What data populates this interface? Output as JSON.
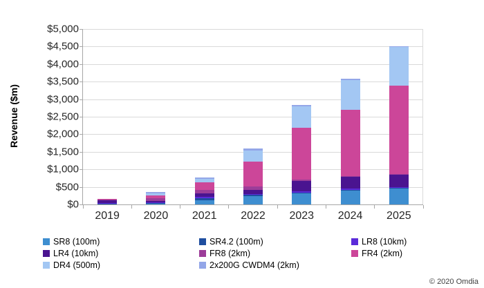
{
  "chart_data": {
    "type": "bar",
    "stacked": true,
    "title": "",
    "ylabel": "Revenue ($m)",
    "xlabel": "",
    "ylim": [
      0,
      5000
    ],
    "ytick_step": 500,
    "ytick_prefix": "$",
    "grid": true,
    "legend_position": "bottom",
    "categories": [
      "2019",
      "2020",
      "2021",
      "2022",
      "2023",
      "2024",
      "2025"
    ],
    "series": [
      {
        "name": "SR8 (100m)",
        "color": "#3e8ed0",
        "values": [
          15,
          25,
          120,
          230,
          310,
          400,
          460
        ]
      },
      {
        "name": "SR4.2 (100m)",
        "color": "#1f4e9f",
        "values": [
          10,
          15,
          50,
          40,
          30,
          20,
          15
        ]
      },
      {
        "name": "LR8 (10km)",
        "color": "#5b2bd9",
        "values": [
          20,
          20,
          45,
          20,
          40,
          30,
          25
        ]
      },
      {
        "name": "LR4 (10km)",
        "color": "#4a1490",
        "values": [
          70,
          45,
          110,
          130,
          280,
          330,
          350
        ]
      },
      {
        "name": "FR8 (2km)",
        "color": "#9c3d99",
        "values": [
          25,
          75,
          85,
          90,
          40,
          30,
          25
        ]
      },
      {
        "name": "FR4 (2km)",
        "color": "#cc4699",
        "values": [
          20,
          70,
          230,
          715,
          1480,
          1890,
          2520
        ]
      },
      {
        "name": "DR4 (500m)",
        "color": "#a3c7f3",
        "values": [
          0,
          60,
          80,
          320,
          610,
          850,
          1100
        ]
      },
      {
        "name": "2x200G  CWDM4 (2km)",
        "color": "#93a6e8",
        "values": [
          0,
          40,
          40,
          55,
          50,
          40,
          20
        ]
      }
    ],
    "totals": [
      160,
      350,
      760,
      1600,
      2840,
      3590,
      4515
    ]
  },
  "footer": {
    "copyright": "© 2020 Omdia"
  }
}
